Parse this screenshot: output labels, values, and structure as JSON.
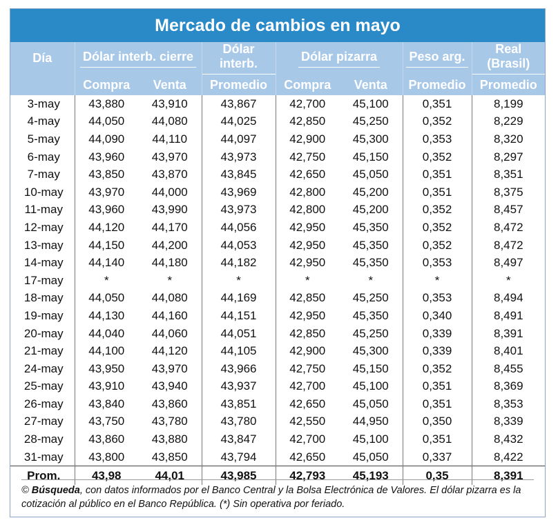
{
  "title": "Mercado de cambios en mayo",
  "colors": {
    "title_bg": "#2a8ac8",
    "header_bg": "#a8c8e8"
  },
  "header": {
    "dia": "Día",
    "group1": "Dólar interb. cierre",
    "group2": "Dólar interb.",
    "group3": "Dólar pizarra",
    "group4": "Peso arg.",
    "group5": "Real (Brasil)",
    "compra": "Compra",
    "venta": "Venta",
    "promedio": "Promedio"
  },
  "rows": [
    [
      "3-may",
      "43,880",
      "43,910",
      "43,867",
      "42,700",
      "45,100",
      "0,351",
      "8,199"
    ],
    [
      "4-may",
      "44,050",
      "44,080",
      "44,025",
      "42,850",
      "45,250",
      "0,352",
      "8,229"
    ],
    [
      "5-may",
      "44,090",
      "44,110",
      "44,097",
      "42,900",
      "45,300",
      "0,353",
      "8,320"
    ],
    [
      "6-may",
      "43,960",
      "43,970",
      "43,973",
      "42,750",
      "45,150",
      "0,352",
      "8,297"
    ],
    [
      "7-may",
      "43,850",
      "43,870",
      "43,845",
      "42,650",
      "45,050",
      "0,351",
      "8,351"
    ],
    [
      "10-may",
      "43,970",
      "44,000",
      "43,969",
      "42,800",
      "45,200",
      "0,351",
      "8,375"
    ],
    [
      "11-may",
      "43,960",
      "43,990",
      "43,973",
      "42,800",
      "45,200",
      "0,352",
      "8,457"
    ],
    [
      "12-may",
      "44,120",
      "44,170",
      "44,056",
      "42,950",
      "45,350",
      "0,352",
      "8,472"
    ],
    [
      "13-may",
      "44,150",
      "44,200",
      "44,053",
      "42,950",
      "45,350",
      "0,352",
      "8,472"
    ],
    [
      "14-may",
      "44,140",
      "44,180",
      "44,182",
      "42,950",
      "45,350",
      "0,353",
      "8,497"
    ],
    [
      "17-may",
      "*",
      "*",
      "*",
      "*",
      "*",
      "*",
      "*"
    ],
    [
      "18-may",
      "44,050",
      "44,080",
      "44,169",
      "42,850",
      "45,250",
      "0,353",
      "8,494"
    ],
    [
      "19-may",
      "44,130",
      "44,160",
      "44,151",
      "42,950",
      "45,350",
      "0,340",
      "8,491"
    ],
    [
      "20-may",
      "44,040",
      "44,060",
      "44,051",
      "42,850",
      "45,250",
      "0,339",
      "8,391"
    ],
    [
      "21-may",
      "44,100",
      "44,120",
      "44,105",
      "42,900",
      "45,300",
      "0,339",
      "8,401"
    ],
    [
      "24-may",
      "43,950",
      "43,970",
      "43,966",
      "42,750",
      "45,150",
      "0,352",
      "8,455"
    ],
    [
      "25-may",
      "43,910",
      "43,940",
      "43,937",
      "42,700",
      "45,100",
      "0,351",
      "8,369"
    ],
    [
      "26-may",
      "43,840",
      "43,860",
      "43,851",
      "42,650",
      "45,050",
      "0,351",
      "8,353"
    ],
    [
      "27-may",
      "43,750",
      "43,780",
      "43,780",
      "42,550",
      "44,950",
      "0,350",
      "8,339"
    ],
    [
      "28-may",
      "43,860",
      "43,880",
      "43,847",
      "42,700",
      "45,100",
      "0,351",
      "8,432"
    ],
    [
      "31-may",
      "43,800",
      "43,850",
      "43,794",
      "42,650",
      "45,050",
      "0,337",
      "8,422"
    ]
  ],
  "average": [
    "Prom.",
    "43,98",
    "44,01",
    "43,985",
    "42,793",
    "45,193",
    "0,35",
    "8,391"
  ],
  "note": {
    "copyright": "©",
    "source_name": "Búsqueda",
    "text": ", con datos informados por el Banco Central y la Bolsa Electrónica de Valores. El dólar pizarra es la cotización al público en el Banco República. (*) Sin operativa por feriado."
  }
}
